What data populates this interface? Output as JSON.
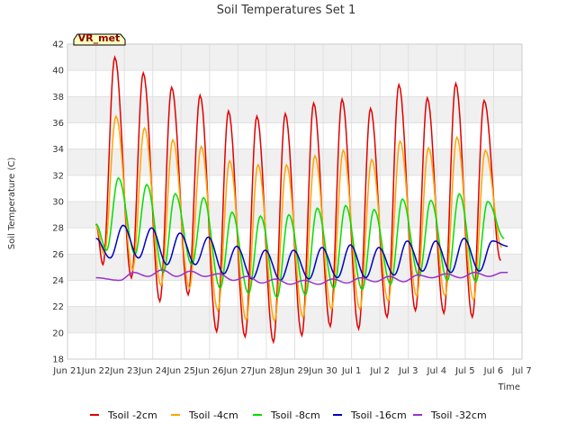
{
  "chart_data": {
    "type": "line",
    "title": "Soil Temperatures Set 1",
    "xlabel": "Time",
    "ylabel": "Soil Temperature (C)",
    "badge": "VR_met",
    "x_range": [
      "Jun 21",
      "Jul 7"
    ],
    "x_ticks": [
      "Jun 21",
      "Jun 22",
      "Jun 23",
      "Jun 24",
      "Jun 25",
      "Jun 26",
      "Jun 27",
      "Jun 28",
      "Jun 29",
      "Jun 30",
      "Jul 1",
      "Jul 2",
      "Jul 3",
      "Jul 4",
      "Jul 5",
      "Jul 6",
      "Jul 7"
    ],
    "ylim": [
      18,
      42
    ],
    "y_ticks": [
      18,
      20,
      22,
      24,
      26,
      28,
      30,
      32,
      34,
      36,
      38,
      40,
      42
    ],
    "grid": true,
    "band_background": true,
    "legend_position": "bottom",
    "series": [
      {
        "name": "Tsoil -2cm",
        "color": "#e00000",
        "min_times": [
          "Jun 22 06:00",
          "Jun 23 06:00",
          "Jun 24 06:00",
          "Jun 25 06:00",
          "Jun 26 06:00",
          "Jun 27 06:00",
          "Jun 28 06:00",
          "Jun 29 06:00",
          "Jun 30 06:00",
          "Jul 1 06:00",
          "Jul 2 06:00",
          "Jul 3 06:00",
          "Jul 4 06:00",
          "Jul 5 06:00",
          "Jul 6 06:00"
        ],
        "min_values": [
          25.2,
          24.2,
          22.4,
          22.9,
          20.1,
          19.7,
          19.3,
          19.8,
          20.5,
          20.3,
          21.2,
          21.7,
          21.5,
          21.2,
          25.5
        ],
        "max_times": [
          "Jun 22 16:00",
          "Jun 23 16:00",
          "Jun 24 16:00",
          "Jun 25 16:00",
          "Jun 26 16:00",
          "Jun 27 16:00",
          "Jun 28 16:00",
          "Jun 29 16:00",
          "Jun 30 16:00",
          "Jul 1 16:00",
          "Jul 2 16:00",
          "Jul 3 16:00",
          "Jul 4 16:00",
          "Jul 5 16:00",
          "Jul 6 16:00"
        ],
        "max_values": [
          41.0,
          39.8,
          38.7,
          38.1,
          36.9,
          36.5,
          36.7,
          37.5,
          37.8,
          37.1,
          38.9,
          37.9,
          39.0,
          37.7,
          37.5
        ],
        "start": [
          "Jun 22 00:00",
          28.3
        ],
        "end": [
          "Jul 6 06:00",
          25.5
        ]
      },
      {
        "name": "Tsoil -4cm",
        "color": "#ffa500",
        "min_times": [
          "Jun 22 07:00",
          "Jun 23 07:00",
          "Jun 24 07:00",
          "Jun 25 07:00",
          "Jun 26 07:00",
          "Jun 27 07:00",
          "Jun 28 07:00",
          "Jun 29 07:00",
          "Jun 30 07:00",
          "Jul 1 07:00",
          "Jul 2 07:00",
          "Jul 3 07:00",
          "Jul 4 07:00",
          "Jul 5 07:00",
          "Jul 6 07:00"
        ],
        "min_values": [
          26.0,
          24.8,
          23.6,
          23.4,
          21.7,
          21.0,
          20.9,
          21.2,
          21.8,
          21.8,
          22.4,
          22.8,
          22.8,
          22.5,
          26.5
        ],
        "max_times": [
          "Jun 22 17:00",
          "Jun 23 17:00",
          "Jun 24 17:00",
          "Jun 25 17:00",
          "Jun 26 17:00",
          "Jun 27 17:00",
          "Jun 28 17:00",
          "Jun 29 17:00",
          "Jun 30 17:00",
          "Jul 1 17:00",
          "Jul 2 17:00",
          "Jul 3 17:00",
          "Jul 4 17:00",
          "Jul 5 17:00",
          "Jul 6 17:00"
        ],
        "max_values": [
          36.5,
          35.6,
          34.7,
          34.2,
          33.1,
          32.8,
          32.8,
          33.5,
          33.9,
          33.2,
          34.6,
          34.1,
          34.9,
          33.9,
          33.8
        ],
        "start": [
          "Jun 22 00:00",
          28.2
        ],
        "end": [
          "Jul 6 07:00",
          26.5
        ]
      },
      {
        "name": "Tsoil -8cm",
        "color": "#00e000",
        "min_times": [
          "Jun 22 09:00",
          "Jun 23 09:00",
          "Jun 24 09:00",
          "Jun 25 09:00",
          "Jun 26 09:00",
          "Jun 27 09:00",
          "Jun 28 09:00",
          "Jun 29 09:00",
          "Jun 30 09:00",
          "Jul 1 09:00",
          "Jul 2 09:00",
          "Jul 3 09:00",
          "Jul 4 09:00",
          "Jul 5 09:00",
          "Jul 6 09:00"
        ],
        "min_values": [
          26.3,
          26.0,
          24.6,
          25.2,
          23.4,
          23.0,
          22.7,
          22.9,
          23.4,
          23.3,
          23.7,
          24.3,
          24.0,
          23.9,
          27.2
        ],
        "max_times": [
          "Jun 22 19:00",
          "Jun 23 19:00",
          "Jun 24 19:00",
          "Jun 25 19:00",
          "Jun 26 19:00",
          "Jun 27 19:00",
          "Jun 28 19:00",
          "Jun 29 19:00",
          "Jun 30 19:00",
          "Jul 1 19:00",
          "Jul 2 19:00",
          "Jul 3 19:00",
          "Jul 4 19:00",
          "Jul 5 19:00",
          "Jul 6 19:00"
        ],
        "max_values": [
          31.8,
          31.3,
          30.6,
          30.3,
          29.2,
          28.9,
          29.0,
          29.5,
          29.7,
          29.4,
          30.2,
          30.1,
          30.6,
          30.0,
          30.0
        ],
        "start": [
          "Jun 22 00:00",
          28.3
        ],
        "end": [
          "Jul 6 09:00",
          27.2
        ]
      },
      {
        "name": "Tsoil -16cm",
        "color": "#0000c0",
        "min_times": [
          "Jun 22 12:00",
          "Jun 23 12:00",
          "Jun 24 12:00",
          "Jun 25 12:00",
          "Jun 26 12:00",
          "Jun 27 12:00",
          "Jun 28 12:00",
          "Jun 29 12:00",
          "Jun 30 12:00",
          "Jul 1 12:00",
          "Jul 2 12:00",
          "Jul 3 12:00",
          "Jul 4 12:00",
          "Jul 5 12:00",
          "Jul 6 12:00"
        ],
        "min_values": [
          25.7,
          25.7,
          25.2,
          25.2,
          24.5,
          24.1,
          24.0,
          24.1,
          24.2,
          24.2,
          24.4,
          24.7,
          24.6,
          24.7,
          26.6
        ],
        "max_times": [
          "Jun 22 23:00",
          "Jun 23 23:00",
          "Jun 24 23:00",
          "Jun 25 23:00",
          "Jun 26 23:00",
          "Jun 27 23:00",
          "Jun 28 23:00",
          "Jun 29 23:00",
          "Jun 30 23:00",
          "Jul 1 23:00",
          "Jul 2 23:00",
          "Jul 3 23:00",
          "Jul 4 23:00",
          "Jul 5 23:00",
          "Jul 6 23:00"
        ],
        "max_values": [
          28.2,
          28.0,
          27.6,
          27.3,
          26.6,
          26.3,
          26.3,
          26.5,
          26.7,
          26.5,
          27.0,
          27.0,
          27.2,
          27.0,
          27.0
        ],
        "start": [
          "Jun 22 00:00",
          27.2
        ],
        "end": [
          "Jul 6 12:00",
          26.6
        ]
      },
      {
        "name": "Tsoil -32cm",
        "color": "#9932cc",
        "min_times": [
          "Jun 22 20:00",
          "Jun 23 20:00",
          "Jun 24 20:00",
          "Jun 25 20:00",
          "Jun 26 20:00",
          "Jun 27 20:00",
          "Jun 28 20:00",
          "Jun 29 20:00",
          "Jun 30 20:00",
          "Jul 1 20:00",
          "Jul 2 20:00",
          "Jul 3 20:00",
          "Jul 4 20:00",
          "Jul 5 20:00"
        ],
        "min_values": [
          24.0,
          24.3,
          24.3,
          24.3,
          24.0,
          23.8,
          23.7,
          23.7,
          23.8,
          23.9,
          23.9,
          24.2,
          24.2,
          24.3
        ],
        "max_times": [
          "Jun 23 08:00",
          "Jun 24 08:00",
          "Jun 25 08:00",
          "Jun 26 08:00",
          "Jun 27 08:00",
          "Jun 28 08:00",
          "Jun 29 08:00",
          "Jun 30 08:00",
          "Jul 1 08:00",
          "Jul 2 08:00",
          "Jul 3 08:00",
          "Jul 4 08:00",
          "Jul 5 08:00",
          "Jul 6 08:00"
        ],
        "max_values": [
          24.6,
          24.8,
          24.7,
          24.5,
          24.3,
          24.1,
          24.0,
          24.1,
          24.2,
          24.3,
          24.4,
          24.5,
          24.6,
          24.6
        ],
        "start": [
          "Jun 22 00:00",
          24.2
        ],
        "end": [
          "Jul 6 12:00",
          24.6
        ]
      }
    ]
  }
}
